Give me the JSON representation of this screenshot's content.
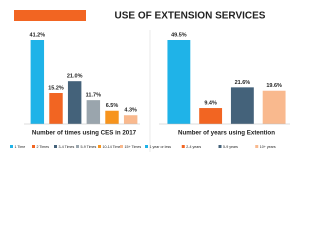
{
  "title": "USE OF EXTENSION SERVICES",
  "chart_data": [
    {
      "type": "bar",
      "title": "Number of times using CES in 2017",
      "categories": [
        "1 Time",
        "2 Times",
        "3-4 Times",
        "5-9 Times",
        "10-14 Times",
        "15+ Times"
      ],
      "values": [
        41.2,
        15.2,
        21.0,
        11.7,
        6.5,
        4.3
      ],
      "value_labels": [
        "41.2%",
        "15.2%",
        "21.0%",
        "11.7%",
        "6.5%",
        "4.3%"
      ],
      "colors": [
        "#1fb3e8",
        "#f26522",
        "#44627a",
        "#9aa5ad",
        "#f7941d",
        "#f9b98e"
      ]
    },
    {
      "type": "bar",
      "title": "Number of years using Extention",
      "categories": [
        "1 year or less",
        "2-4 years",
        "5-9 years",
        "10+ years"
      ],
      "values": [
        49.5,
        9.4,
        21.6,
        19.6
      ],
      "value_labels": [
        "49.5%",
        "9.4%",
        "21.6%",
        "19.6%"
      ],
      "colors": [
        "#1fb3e8",
        "#f26522",
        "#44627a",
        "#f9b98e"
      ]
    }
  ]
}
